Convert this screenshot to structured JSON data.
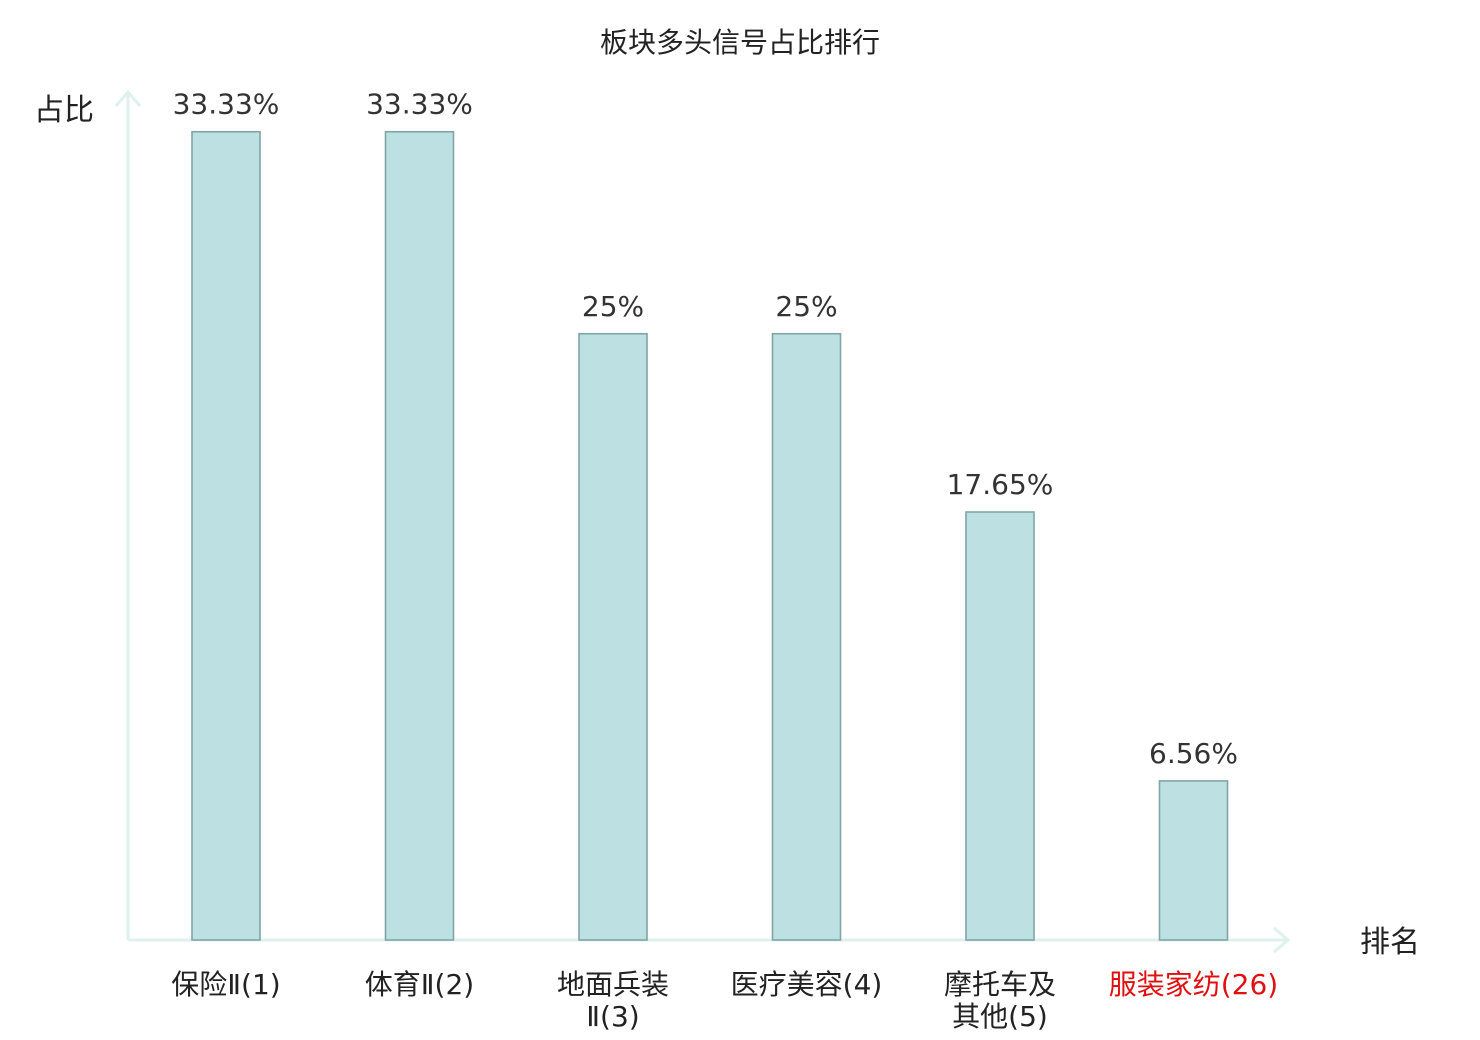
{
  "chart_data": {
    "type": "bar",
    "title": "板块多头信号占比排行",
    "ylabel": "占比",
    "xlabel": "排名",
    "ylim": [
      0,
      35
    ],
    "grid": false,
    "legend": "none",
    "categories": [
      {
        "lines": [
          "保险Ⅱ(1)"
        ],
        "highlight": false
      },
      {
        "lines": [
          "体育Ⅱ(2)"
        ],
        "highlight": false
      },
      {
        "lines": [
          "地面兵装",
          "Ⅱ(3)"
        ],
        "highlight": false
      },
      {
        "lines": [
          "医疗美容(4)"
        ],
        "highlight": false
      },
      {
        "lines": [
          "摩托车及",
          "其他(5)"
        ],
        "highlight": false
      },
      {
        "lines": [
          "服装家纺(26)"
        ],
        "highlight": true
      }
    ],
    "values": [
      33.33,
      33.33,
      25,
      25,
      17.65,
      6.56
    ],
    "value_labels": [
      "33.33%",
      "33.33%",
      "25%",
      "25%",
      "17.65%",
      "6.56%"
    ],
    "colors": {
      "bar_fill": "#bde1e3",
      "bar_stroke": "#7fa5a7",
      "axis": "#dff1ef",
      "highlight_label": "#e01010"
    }
  }
}
